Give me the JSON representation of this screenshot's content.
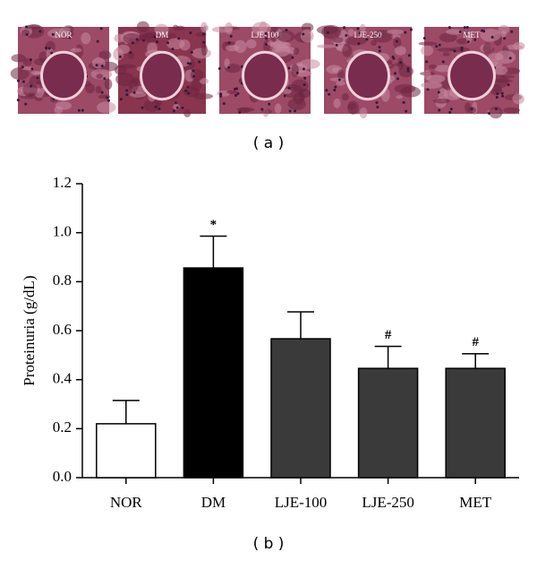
{
  "panels": {
    "labels": [
      "NOR",
      "DM",
      "LJE-100",
      "LJE-250",
      "MET"
    ],
    "caption": "( a )"
  },
  "chart_data": {
    "type": "bar",
    "y_label": "Proteinuria (g/dL)",
    "categories": [
      "NOR",
      "DM",
      "LJE-100",
      "LJE-250",
      "MET"
    ],
    "values": [
      0.22,
      0.856,
      0.567,
      0.446,
      0.446
    ],
    "errors": [
      0.095,
      0.13,
      0.11,
      0.09,
      0.06
    ],
    "colors": [
      "#ffffff",
      "#000000",
      "#3a3a3a",
      "#3a3a3a",
      "#3a3a3a"
    ],
    "significance": [
      null,
      "*",
      null,
      "#",
      "#"
    ],
    "ylim": [
      0,
      1.2
    ],
    "yticks": [
      {
        "value": 0,
        "label": "0.0"
      },
      0.2,
      0.4,
      0.6,
      0.8,
      {
        "value": 1,
        "label": "1.0"
      },
      1.2
    ],
    "grid": false,
    "caption": "( b )"
  }
}
